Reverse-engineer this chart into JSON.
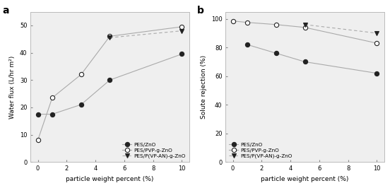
{
  "x": [
    0,
    1,
    3,
    5,
    10
  ],
  "flux_pes_zno": [
    17.5,
    17.5,
    21,
    30,
    39.5
  ],
  "flux_pvp": [
    8,
    23.5,
    32,
    46,
    49.5
  ],
  "flux_vpan": [
    null,
    null,
    null,
    45.5,
    48
  ],
  "rejection_pes_zno": [
    null,
    82,
    76,
    70,
    62
  ],
  "rejection_pvp": [
    98.5,
    97.5,
    96,
    94,
    83
  ],
  "rejection_vpan": [
    null,
    null,
    null,
    96,
    90
  ],
  "xlabel": "particle weight percent (%)",
  "ylabel_a": "Water flux (L/hr m²)",
  "ylabel_b": "Solute rejection (%)",
  "label1": "PES/ZnO",
  "label2": "PES/PVP-g-ZnO",
  "label3": "PES/P(VP-AN)-g-ZnO",
  "ylim_a": [
    0,
    55
  ],
  "ylim_b": [
    0,
    105
  ],
  "yticks_a": [
    0,
    10,
    20,
    30,
    40,
    50
  ],
  "yticks_b": [
    0,
    20,
    40,
    60,
    80,
    100
  ],
  "xticks": [
    0,
    2,
    4,
    6,
    8,
    10
  ],
  "line_color_dark": "#222222",
  "line_color_light": "#aaaaaa",
  "marker_dark": "#111111",
  "marker_open": "#ffffff",
  "plot_bg": "#efefef"
}
